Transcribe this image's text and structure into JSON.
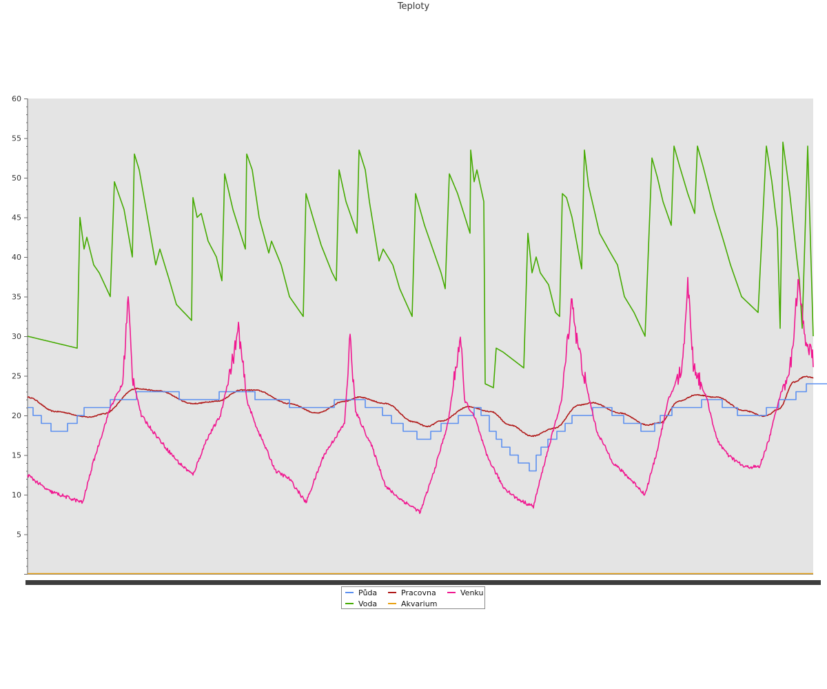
{
  "chart_data": {
    "type": "line",
    "title": "Teploty",
    "xlabel": "",
    "ylabel": "",
    "ylim": [
      0,
      60
    ],
    "yticks": [
      5,
      10,
      15,
      20,
      25,
      30,
      35,
      40,
      45,
      50,
      55,
      60
    ],
    "x_tick_labels_legible": false,
    "grid": false,
    "legend_position": "bottom-center",
    "n_points": 341,
    "series": [
      {
        "name": "Půda",
        "color": "#5b8ff0",
        "shape": "step",
        "knots": [
          [
            0,
            21
          ],
          [
            8,
            20
          ],
          [
            20,
            19
          ],
          [
            34,
            18
          ],
          [
            58,
            19
          ],
          [
            72,
            20
          ],
          [
            82,
            21
          ],
          [
            120,
            22
          ],
          [
            158,
            23
          ],
          [
            220,
            22
          ],
          [
            242,
            22
          ],
          [
            278,
            23
          ],
          [
            330,
            22
          ],
          [
            380,
            21
          ],
          [
            445,
            22
          ],
          [
            490,
            21
          ],
          [
            515,
            20
          ],
          [
            528,
            19
          ],
          [
            545,
            18
          ],
          [
            565,
            17
          ],
          [
            585,
            18
          ],
          [
            600,
            19
          ],
          [
            625,
            20
          ],
          [
            648,
            21
          ],
          [
            658,
            20
          ],
          [
            670,
            18
          ],
          [
            680,
            17
          ],
          [
            688,
            16
          ],
          [
            700,
            15
          ],
          [
            712,
            14
          ],
          [
            728,
            13
          ],
          [
            738,
            15
          ],
          [
            745,
            16
          ],
          [
            755,
            17
          ],
          [
            768,
            18
          ],
          [
            780,
            19
          ],
          [
            790,
            20
          ],
          [
            820,
            21
          ],
          [
            848,
            20
          ],
          [
            865,
            19
          ],
          [
            890,
            18
          ],
          [
            910,
            19
          ],
          [
            918,
            20
          ],
          [
            935,
            21
          ],
          [
            978,
            22
          ],
          [
            1008,
            21
          ],
          [
            1030,
            20
          ],
          [
            1072,
            21
          ],
          [
            1090,
            22
          ],
          [
            1115,
            23
          ],
          [
            1130,
            24
          ],
          [
            1155,
            24
          ],
          [
            1180,
            24
          ]
        ]
      },
      {
        "name": "Voda",
        "color": "#44aa00",
        "shape": "sawtooth",
        "knots": [
          [
            0,
            30
          ],
          [
            72,
            28.5
          ],
          [
            76,
            45
          ],
          [
            82,
            41
          ],
          [
            86,
            42.5
          ],
          [
            96,
            39
          ],
          [
            104,
            38
          ],
          [
            120,
            35
          ],
          [
            126,
            49.5
          ],
          [
            140,
            46
          ],
          [
            152,
            40
          ],
          [
            155,
            53
          ],
          [
            162,
            51
          ],
          [
            176,
            44
          ],
          [
            186,
            39
          ],
          [
            192,
            41
          ],
          [
            206,
            37
          ],
          [
            216,
            34
          ],
          [
            238,
            32
          ],
          [
            240,
            47.5
          ],
          [
            246,
            45
          ],
          [
            252,
            45.5
          ],
          [
            262,
            42
          ],
          [
            274,
            40
          ],
          [
            282,
            37
          ],
          [
            286,
            50.5
          ],
          [
            298,
            46
          ],
          [
            316,
            41
          ],
          [
            318,
            53
          ],
          [
            326,
            51
          ],
          [
            336,
            45
          ],
          [
            350,
            40.5
          ],
          [
            354,
            42
          ],
          [
            368,
            39
          ],
          [
            380,
            35
          ],
          [
            400,
            32.5
          ],
          [
            404,
            48
          ],
          [
            414,
            45
          ],
          [
            426,
            41.5
          ],
          [
            442,
            38
          ],
          [
            448,
            37
          ],
          [
            452,
            51
          ],
          [
            462,
            47
          ],
          [
            478,
            43
          ],
          [
            481,
            53.5
          ],
          [
            490,
            51
          ],
          [
            496,
            47
          ],
          [
            510,
            39.5
          ],
          [
            516,
            41
          ],
          [
            530,
            39
          ],
          [
            540,
            36
          ],
          [
            558,
            32.5
          ],
          [
            563,
            48
          ],
          [
            576,
            44
          ],
          [
            584,
            42
          ],
          [
            600,
            38
          ],
          [
            606,
            36
          ],
          [
            612,
            50.5
          ],
          [
            624,
            48
          ],
          [
            642,
            43
          ],
          [
            643,
            53.5
          ],
          [
            648,
            49.5
          ],
          [
            652,
            51
          ],
          [
            662,
            47
          ],
          [
            664,
            24
          ],
          [
            676,
            23.5
          ],
          [
            680,
            28.5
          ],
          [
            690,
            28
          ],
          [
            720,
            26
          ],
          [
            726,
            43
          ],
          [
            732,
            38
          ],
          [
            738,
            40
          ],
          [
            744,
            38
          ],
          [
            756,
            36.5
          ],
          [
            766,
            33
          ],
          [
            772,
            32.5
          ],
          [
            776,
            48
          ],
          [
            782,
            47.5
          ],
          [
            790,
            45
          ],
          [
            804,
            38.5
          ],
          [
            808,
            53.5
          ],
          [
            814,
            49
          ],
          [
            830,
            43
          ],
          [
            846,
            40.5
          ],
          [
            856,
            39
          ],
          [
            866,
            35
          ],
          [
            880,
            33
          ],
          [
            896,
            30
          ],
          [
            906,
            52.5
          ],
          [
            914,
            50
          ],
          [
            922,
            47
          ],
          [
            934,
            44
          ],
          [
            938,
            54
          ],
          [
            946,
            51.5
          ],
          [
            958,
            48
          ],
          [
            968,
            45.5
          ],
          [
            972,
            54
          ],
          [
            980,
            51.5
          ],
          [
            996,
            46
          ],
          [
            1010,
            42
          ],
          [
            1020,
            39
          ],
          [
            1036,
            35
          ],
          [
            1060,
            33
          ],
          [
            1072,
            54
          ],
          [
            1080,
            49.5
          ],
          [
            1088,
            43.5
          ],
          [
            1092,
            31
          ],
          [
            1096,
            54.5
          ],
          [
            1106,
            48
          ],
          [
            1116,
            40
          ],
          [
            1120,
            37
          ],
          [
            1124,
            31
          ],
          [
            1132,
            54
          ],
          [
            1140,
            30
          ],
          [
            1146,
            56
          ],
          [
            1154,
            53
          ],
          [
            1166,
            43
          ],
          [
            1170,
            45.5
          ],
          [
            1180,
            43
          ]
        ]
      },
      {
        "name": "Pracovna",
        "color": "#b01818",
        "shape": "smooth",
        "knots": [
          [
            0,
            22.3
          ],
          [
            40,
            20.5
          ],
          [
            90,
            19.8
          ],
          [
            110,
            20.2
          ],
          [
            158,
            23.4
          ],
          [
            190,
            23.1
          ],
          [
            240,
            21.5
          ],
          [
            275,
            21.8
          ],
          [
            310,
            23.2
          ],
          [
            330,
            23.2
          ],
          [
            380,
            21.5
          ],
          [
            420,
            20.3
          ],
          [
            460,
            21.8
          ],
          [
            480,
            22.3
          ],
          [
            520,
            21.5
          ],
          [
            560,
            19.2
          ],
          [
            580,
            18.6
          ],
          [
            600,
            19.3
          ],
          [
            640,
            21.1
          ],
          [
            672,
            20.5
          ],
          [
            700,
            18.8
          ],
          [
            732,
            17.4
          ],
          [
            765,
            18.4
          ],
          [
            800,
            21.3
          ],
          [
            820,
            21.6
          ],
          [
            860,
            20.3
          ],
          [
            900,
            18.8
          ],
          [
            918,
            19.1
          ],
          [
            945,
            21.8
          ],
          [
            970,
            22.6
          ],
          [
            1000,
            22.3
          ],
          [
            1040,
            20.6
          ],
          [
            1070,
            19.9
          ],
          [
            1090,
            20.8
          ],
          [
            1112,
            24.2
          ],
          [
            1128,
            24.9
          ],
          [
            1160,
            24.3
          ],
          [
            1180,
            23.5
          ]
        ]
      },
      {
        "name": "Akvarium",
        "color": "#e8a010",
        "shape": "flat",
        "knots": [
          [
            0,
            0
          ],
          [
            1180,
            0
          ]
        ]
      },
      {
        "name": "Venku",
        "color": "#f01890",
        "shape": "noisy",
        "knots": [
          [
            0,
            12.5
          ],
          [
            30,
            10.5
          ],
          [
            80,
            9
          ],
          [
            95,
            14
          ],
          [
            120,
            21
          ],
          [
            138,
            24
          ],
          [
            146,
            35
          ],
          [
            152,
            25
          ],
          [
            165,
            20
          ],
          [
            182,
            18
          ],
          [
            200,
            16
          ],
          [
            220,
            14
          ],
          [
            240,
            12.5
          ],
          [
            260,
            17
          ],
          [
            280,
            20
          ],
          [
            300,
            28
          ],
          [
            306,
            31
          ],
          [
            318,
            22
          ],
          [
            330,
            19
          ],
          [
            345,
            16
          ],
          [
            360,
            13
          ],
          [
            380,
            12
          ],
          [
            404,
            9
          ],
          [
            430,
            15
          ],
          [
            460,
            19
          ],
          [
            468,
            30
          ],
          [
            476,
            20.5
          ],
          [
            500,
            16
          ],
          [
            520,
            11
          ],
          [
            540,
            9.5
          ],
          [
            570,
            7.8
          ],
          [
            590,
            13
          ],
          [
            610,
            19
          ],
          [
            628,
            30
          ],
          [
            634,
            22
          ],
          [
            650,
            19.5
          ],
          [
            666,
            15
          ],
          [
            690,
            11
          ],
          [
            710,
            9.5
          ],
          [
            734,
            8.5
          ],
          [
            750,
            14
          ],
          [
            775,
            22
          ],
          [
            790,
            35
          ],
          [
            796,
            30
          ],
          [
            810,
            24
          ],
          [
            826,
            18
          ],
          [
            850,
            14
          ],
          [
            880,
            11.5
          ],
          [
            896,
            10
          ],
          [
            912,
            15
          ],
          [
            930,
            22
          ],
          [
            950,
            26
          ],
          [
            958,
            37
          ],
          [
            966,
            26.5
          ],
          [
            986,
            22
          ],
          [
            1000,
            17
          ],
          [
            1016,
            15
          ],
          [
            1040,
            13.5
          ],
          [
            1062,
            13.5
          ],
          [
            1076,
            17
          ],
          [
            1090,
            22
          ],
          [
            1108,
            26.5
          ],
          [
            1118,
            37
          ],
          [
            1128,
            30
          ],
          [
            1140,
            27
          ],
          [
            1156,
            20
          ],
          [
            1180,
            18.8
          ]
        ]
      }
    ]
  }
}
